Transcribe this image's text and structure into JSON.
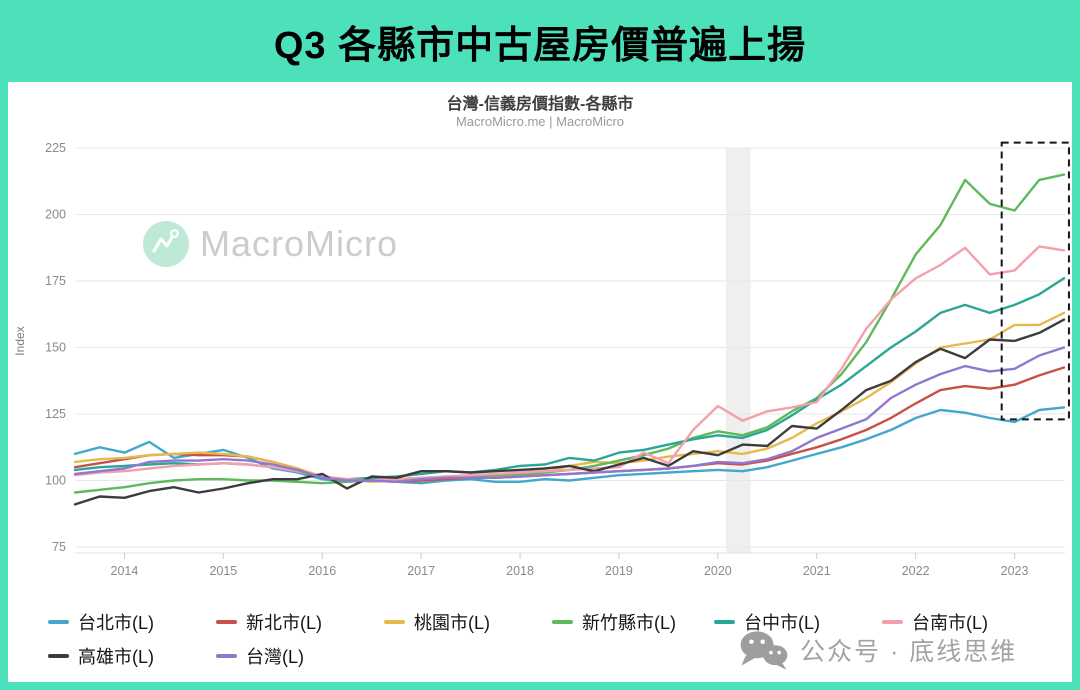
{
  "page": {
    "title": "Q3 各縣市中古屋房價普遍上揚",
    "frame_color": "#4CE1BB"
  },
  "chart": {
    "title": "台灣-信義房價指數-各縣市",
    "source": "MacroMicro.me | MacroMicro",
    "watermark_text": "MacroMicro",
    "ylabel": "Index",
    "icons": [
      "macromicro-logo-icon",
      "wechat-icon"
    ]
  },
  "wechat_badge": {
    "label": "公众号 · 底线思维"
  },
  "chart_data": {
    "type": "line",
    "title": "台灣-信義房價指數-各縣市",
    "subtitle": "MacroMicro.me | MacroMicro",
    "xlabel": "",
    "ylabel": "Index",
    "ylim": [
      75,
      225
    ],
    "yticks": [
      75,
      100,
      125,
      150,
      175,
      200,
      225
    ],
    "xticks": [
      2014,
      2015,
      2016,
      2017,
      2018,
      2019,
      2020,
      2021,
      2022,
      2023
    ],
    "grid": "horizontal",
    "legend_position": "bottom",
    "x_start": 2013.5,
    "x_step": 0.25,
    "recession_band_x": [
      2020.08,
      2020.33
    ],
    "highlight_box_x": [
      2022.87,
      2023.55
    ],
    "highlight_box_y": [
      123,
      227
    ],
    "series": [
      {
        "id": "taipei",
        "name": "台北市(L)",
        "color": "#43A8CB",
        "values": [
          110,
          112.5,
          110.5,
          114.5,
          108.5,
          110,
          111.5,
          108.5,
          104.5,
          103,
          100.5,
          99.5,
          100.5,
          99.5,
          99,
          100,
          100.5,
          99.5,
          99.5,
          100.5,
          100,
          101,
          102,
          102.5,
          103,
          103.5,
          104,
          103.5,
          105,
          107.5,
          110,
          112.5,
          115.5,
          119,
          123.5,
          126.5,
          125.5,
          123.5,
          122,
          126.5,
          127.5
        ]
      },
      {
        "id": "new-taipei",
        "name": "新北市(L)",
        "color": "#C85048",
        "values": [
          105,
          106.5,
          108,
          109.5,
          110,
          109.5,
          109.5,
          109,
          107,
          104.5,
          101,
          100,
          100,
          99.5,
          100,
          100.5,
          101,
          101,
          101.5,
          102,
          102.5,
          103,
          103.5,
          104,
          104.5,
          105.5,
          106.5,
          106,
          107.5,
          110,
          112.5,
          115.5,
          119,
          123.5,
          129,
          134,
          135.5,
          134.5,
          136,
          139.5,
          142.5
        ]
      },
      {
        "id": "taoyuan",
        "name": "桃園市(L)",
        "color": "#E6B94D",
        "values": [
          107,
          108,
          108.5,
          109.5,
          110,
          110.5,
          110,
          109,
          107,
          104.5,
          101.5,
          100.5,
          99.5,
          100,
          100.5,
          101.5,
          101,
          101.5,
          102,
          103,
          105.5,
          107,
          106.5,
          107.5,
          109,
          110,
          111,
          110,
          112,
          116,
          121.5,
          126,
          131,
          137,
          144,
          150,
          151.5,
          153,
          158.5,
          158.5,
          163
        ]
      },
      {
        "id": "hsinchu",
        "name": "新竹縣市(L)",
        "color": "#5CBA5C",
        "values": [
          95.5,
          96.5,
          97.5,
          99,
          100,
          100.5,
          100.5,
          100,
          100,
          99.5,
          99,
          99.5,
          100,
          100.5,
          101,
          101,
          101.5,
          102,
          102.5,
          103,
          104,
          105.5,
          107.5,
          109.5,
          112,
          116,
          118.5,
          117,
          120,
          126,
          131,
          140,
          152,
          168,
          185,
          196,
          213,
          204,
          201.5,
          213,
          215
        ]
      },
      {
        "id": "taichung",
        "name": "台中市(L)",
        "color": "#2AA794",
        "values": [
          104,
          105,
          105.5,
          106,
          106.5,
          106,
          106.5,
          106,
          105,
          103.5,
          101,
          100.5,
          101,
          101.5,
          102.5,
          103.5,
          103,
          104,
          105.5,
          106,
          108.5,
          107.5,
          110.5,
          111.5,
          113.5,
          115.5,
          117,
          116,
          119,
          124.5,
          130.5,
          136,
          143,
          150,
          156,
          163,
          166,
          163,
          166,
          170,
          176
        ]
      },
      {
        "id": "tainan",
        "name": "台南市(L)",
        "color": "#F49FAB",
        "values": [
          102,
          103,
          103.5,
          104.5,
          105.5,
          106,
          106.5,
          106,
          105,
          103.5,
          101.5,
          100.5,
          100,
          100.5,
          101,
          101.5,
          102,
          102.5,
          103,
          103.5,
          104,
          104.5,
          105,
          110.5,
          106.5,
          119,
          128,
          122.5,
          126,
          127.5,
          129.5,
          142,
          157,
          168,
          176,
          181,
          187.5,
          177.5,
          179,
          188,
          186.5
        ]
      },
      {
        "id": "kaohsiung",
        "name": "高雄市(L)",
        "color": "#3C3C3C",
        "values": [
          91,
          94,
          93.5,
          96,
          97.5,
          95.5,
          97,
          99,
          100.5,
          100.5,
          102.5,
          97,
          101.5,
          101,
          103.5,
          103.5,
          103,
          103.5,
          104,
          104.5,
          105.5,
          103.5,
          106,
          108.5,
          105.5,
          111,
          109.5,
          113.5,
          113,
          120.5,
          119.5,
          126.5,
          134,
          137.5,
          144.5,
          149.5,
          146,
          153,
          152.5,
          155.5,
          160.5
        ]
      },
      {
        "id": "taiwan",
        "name": "台灣(L)",
        "color": "#9177CE",
        "values": [
          102.5,
          103.5,
          104.5,
          107,
          107.5,
          107.5,
          108,
          107.5,
          106,
          104,
          101,
          100,
          100,
          99.5,
          100.5,
          101,
          101,
          101,
          101.5,
          102,
          102.5,
          103,
          103.5,
          104,
          104.5,
          105.5,
          107,
          106.5,
          108,
          111,
          116,
          119.5,
          123,
          131,
          136,
          140,
          143,
          141,
          142,
          147,
          150
        ]
      }
    ]
  }
}
